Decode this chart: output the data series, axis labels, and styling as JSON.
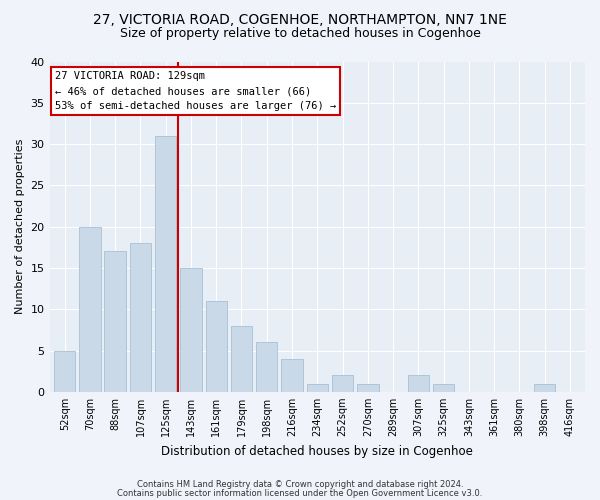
{
  "title_line1": "27, VICTORIA ROAD, COGENHOE, NORTHAMPTON, NN7 1NE",
  "title_line2": "Size of property relative to detached houses in Cogenhoe",
  "xlabel": "Distribution of detached houses by size in Cogenhoe",
  "ylabel": "Number of detached properties",
  "bar_labels": [
    "52sqm",
    "70sqm",
    "88sqm",
    "107sqm",
    "125sqm",
    "143sqm",
    "161sqm",
    "179sqm",
    "198sqm",
    "216sqm",
    "234sqm",
    "252sqm",
    "270sqm",
    "289sqm",
    "307sqm",
    "325sqm",
    "343sqm",
    "361sqm",
    "380sqm",
    "398sqm",
    "416sqm"
  ],
  "bar_values": [
    5,
    20,
    17,
    18,
    31,
    15,
    11,
    8,
    6,
    4,
    1,
    2,
    1,
    0,
    2,
    1,
    0,
    0,
    0,
    1,
    0
  ],
  "bar_color": "#c9d9e8",
  "bar_edgecolor": "#a8c0d4",
  "reference_label": "27 VICTORIA ROAD: 129sqm",
  "annotation_line1": "← 46% of detached houses are smaller (66)",
  "annotation_line2": "53% of semi-detached houses are larger (76) →",
  "annotation_box_facecolor": "#ffffff",
  "annotation_box_edgecolor": "#cc0000",
  "vline_color": "#cc0000",
  "ylim": [
    0,
    40
  ],
  "yticks": [
    0,
    5,
    10,
    15,
    20,
    25,
    30,
    35,
    40
  ],
  "footnote1": "Contains HM Land Registry data © Crown copyright and database right 2024.",
  "footnote2": "Contains public sector information licensed under the Open Government Licence v3.0.",
  "fig_facecolor": "#f0f4fa",
  "plot_facecolor": "#e8eef6",
  "title_fontsize": 10,
  "subtitle_fontsize": 9,
  "bar_width": 0.85,
  "vline_x_index": 4.5
}
